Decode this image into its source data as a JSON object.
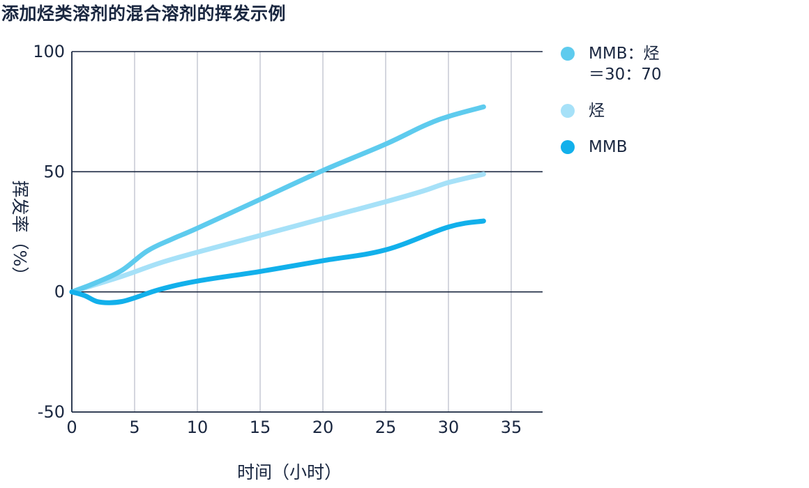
{
  "chart_data": {
    "type": "line",
    "title": "添加烃类溶剂的混合溶剂的挥发示例",
    "xlabel": "时间（小时）",
    "ylabel": "挥发率（%）",
    "xlim": [
      0,
      37.5
    ],
    "ylim": [
      -50,
      100
    ],
    "xticks": [
      0,
      5,
      10,
      15,
      20,
      25,
      30,
      35
    ],
    "yticks": [
      -50,
      0,
      50,
      100
    ],
    "x_tick_labels": [
      "0",
      "5",
      "10",
      "15",
      "20",
      "25",
      "30",
      "35"
    ],
    "y_tick_labels": [
      "-50",
      "0",
      "50",
      "100"
    ],
    "grid": "vertical-light, horizontal-dark",
    "legend_position": "right",
    "series": [
      {
        "name": "MMB：烃\n＝30：70",
        "color": "#5ecbee",
        "x": [
          0,
          2,
          4,
          6,
          8,
          10,
          15,
          20,
          25,
          28,
          30,
          32.8
        ],
        "y": [
          0,
          4,
          9,
          17,
          22,
          26.5,
          38.5,
          50.5,
          61.5,
          69,
          73,
          77
        ]
      },
      {
        "name": "烃",
        "color": "#a6e1f8",
        "x": [
          0,
          4,
          7,
          10,
          15,
          20,
          25,
          28,
          30,
          32.8
        ],
        "y": [
          0,
          6.5,
          12,
          16.5,
          23.5,
          30.5,
          37.5,
          42,
          45.5,
          49
        ]
      },
      {
        "name": "MMB",
        "color": "#12b0eb",
        "x": [
          0,
          1,
          2,
          3,
          4,
          5,
          7,
          10,
          15,
          20,
          25,
          30,
          32.8
        ],
        "y": [
          0,
          -1.5,
          -4,
          -4.5,
          -4,
          -2.5,
          1,
          4.5,
          8.5,
          13,
          17.5,
          27,
          29.5
        ]
      }
    ]
  }
}
